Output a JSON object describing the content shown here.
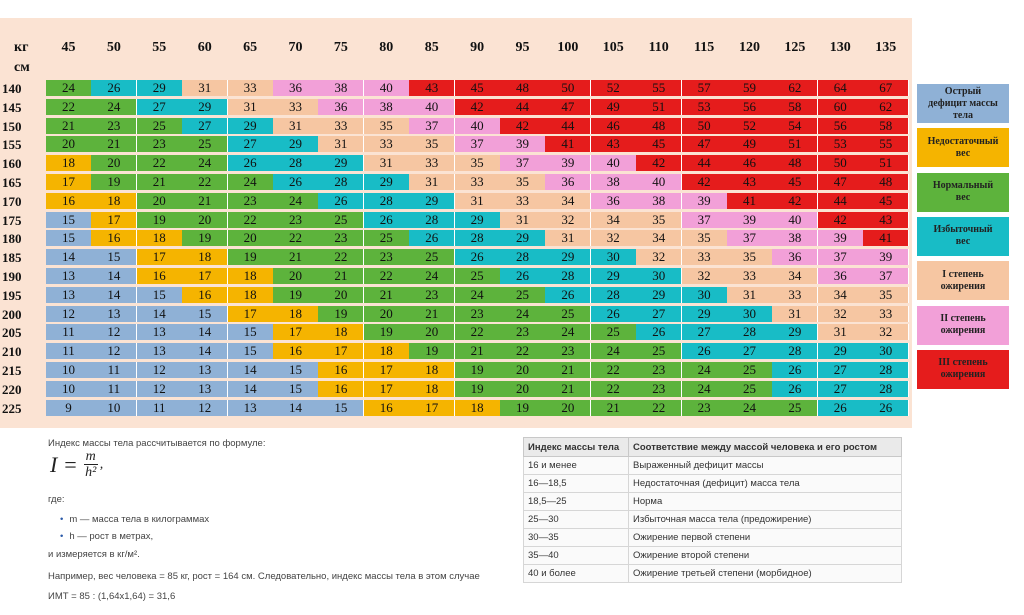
{
  "chart_data": {
    "type": "heatmap",
    "x_unit": "кг",
    "y_unit": "см",
    "weights": [
      "45",
      "50",
      "55",
      "60",
      "65",
      "70",
      "75",
      "80",
      "85",
      "90",
      "95",
      "100",
      "105",
      "110",
      "115",
      "120",
      "125",
      "130",
      "135"
    ],
    "heights": [
      "140",
      "145",
      "150",
      "155",
      "160",
      "165",
      "170",
      "175",
      "180",
      "185",
      "190",
      "195",
      "200",
      "205",
      "210",
      "215",
      "220",
      "225"
    ],
    "values": [
      [
        24,
        26,
        29,
        31,
        33,
        36,
        38,
        40,
        43,
        45,
        48,
        50,
        52,
        55,
        57,
        59,
        62,
        64,
        67
      ],
      [
        22,
        24,
        27,
        29,
        31,
        33,
        36,
        38,
        40,
        42,
        44,
        47,
        49,
        51,
        53,
        56,
        58,
        60,
        62
      ],
      [
        21,
        23,
        25,
        27,
        29,
        31,
        33,
        35,
        37,
        40,
        42,
        44,
        46,
        48,
        50,
        52,
        54,
        56,
        58
      ],
      [
        20,
        21,
        23,
        25,
        27,
        29,
        31,
        33,
        35,
        37,
        39,
        41,
        43,
        45,
        47,
        49,
        51,
        53,
        55
      ],
      [
        18,
        20,
        22,
        24,
        26,
        28,
        29,
        31,
        33,
        35,
        37,
        39,
        40,
        42,
        44,
        46,
        48,
        50,
        51
      ],
      [
        17,
        19,
        21,
        22,
        24,
        26,
        28,
        29,
        31,
        33,
        35,
        36,
        38,
        40,
        42,
        43,
        45,
        47,
        48
      ],
      [
        16,
        18,
        20,
        21,
        23,
        24,
        26,
        28,
        29,
        31,
        33,
        34,
        36,
        38,
        39,
        41,
        42,
        44,
        45
      ],
      [
        15,
        17,
        19,
        20,
        22,
        23,
        25,
        26,
        28,
        29,
        31,
        32,
        34,
        35,
        37,
        39,
        40,
        42,
        43
      ],
      [
        15,
        16,
        18,
        19,
        20,
        22,
        23,
        25,
        26,
        28,
        29,
        31,
        32,
        34,
        35,
        37,
        38,
        39,
        41
      ],
      [
        14,
        15,
        17,
        18,
        19,
        21,
        22,
        23,
        25,
        26,
        28,
        29,
        30,
        32,
        33,
        35,
        36,
        37,
        39
      ],
      [
        13,
        14,
        16,
        17,
        18,
        20,
        21,
        22,
        24,
        25,
        26,
        28,
        29,
        30,
        32,
        33,
        34,
        36,
        37
      ],
      [
        13,
        14,
        15,
        16,
        18,
        19,
        20,
        21,
        23,
        24,
        25,
        26,
        28,
        29,
        30,
        31,
        33,
        34,
        35
      ],
      [
        12,
        13,
        14,
        15,
        17,
        18,
        19,
        20,
        21,
        23,
        24,
        25,
        26,
        27,
        29,
        30,
        31,
        32,
        33
      ],
      [
        11,
        12,
        13,
        14,
        15,
        17,
        18,
        19,
        20,
        22,
        23,
        24,
        25,
        26,
        27,
        28,
        29,
        31,
        32
      ],
      [
        11,
        12,
        13,
        14,
        15,
        16,
        17,
        18,
        19,
        21,
        22,
        23,
        24,
        25,
        26,
        27,
        28,
        29,
        30
      ],
      [
        10,
        11,
        12,
        13,
        14,
        15,
        16,
        17,
        18,
        19,
        20,
        21,
        22,
        23,
        24,
        25,
        26,
        27,
        28
      ],
      [
        10,
        11,
        12,
        13,
        14,
        15,
        16,
        17,
        18,
        19,
        20,
        21,
        22,
        23,
        24,
        25,
        26,
        27,
        28
      ],
      [
        9,
        10,
        11,
        12,
        13,
        14,
        15,
        16,
        17,
        18,
        19,
        20,
        21,
        22,
        23,
        24,
        25,
        26,
        26
      ]
    ],
    "categories": [
      {
        "label": "Острый\nдефицит массы\nтела",
        "max": 15,
        "color": "#8fb1d6"
      },
      {
        "label": "Недостаточный\nвес",
        "max": 18,
        "color": "#f5b400"
      },
      {
        "label": "Нормальный\nвес",
        "max": 25,
        "color": "#5db33c"
      },
      {
        "label": "Избыточный\nвес",
        "max": 30,
        "color": "#18bcc6"
      },
      {
        "label": "I степень\nожирения",
        "max": 35,
        "color": "#f6c6a2"
      },
      {
        "label": "II степень\nожирения",
        "max": 40,
        "color": "#f2a0d8"
      },
      {
        "label": "III степень\nожирения",
        "max": 999,
        "color": "#e51c1c"
      }
    ]
  },
  "explanation": {
    "intro": "Индекс массы тела рассчитывается по формуле:",
    "formula_lhs": "I =",
    "formula_num": "m",
    "formula_den": "h²",
    "formula_end": ",",
    "where": "где:",
    "bullet_m": "m — масса тела в килограммах",
    "bullet_h": "h — рост в метрах,",
    "units": "и измеряется в кг/м².",
    "example": "Например, вес человека = 85 кг, рост = 164 см. Следовательно, индекс массы тела в этом случае",
    "example_calc": "ИМТ = 85 : (1,64х1,64) = 31,6"
  },
  "table": {
    "headers": [
      "Индекс массы тела",
      "Соответствие между массой человека и его ростом"
    ],
    "rows": [
      [
        "16 и менее",
        "Выраженный дефицит массы"
      ],
      [
        "16—18,5",
        "Недостаточная (дефицит) масса тела"
      ],
      [
        "18,5—25",
        "Норма"
      ],
      [
        "25—30",
        "Избыточная масса тела (предожирение)"
      ],
      [
        "30—35",
        "Ожирение первой степени"
      ],
      [
        "35—40",
        "Ожирение второй степени"
      ],
      [
        "40 и более",
        "Ожирение третьей степени (морбидное)"
      ]
    ]
  }
}
